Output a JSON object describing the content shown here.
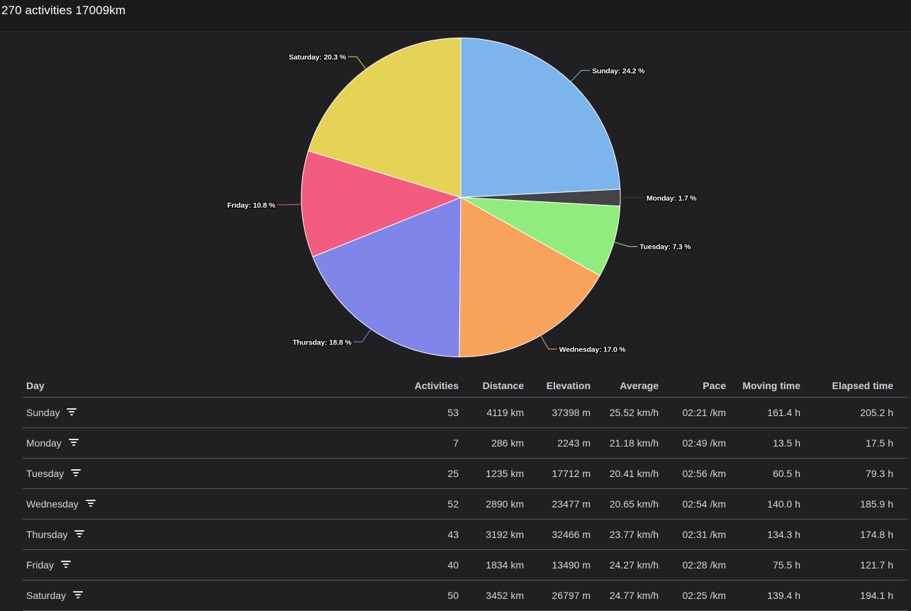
{
  "header": {
    "title": "270 activities 17009km"
  },
  "chart_data": {
    "type": "pie",
    "slices": [
      {
        "label": "Sunday",
        "value": 24.2,
        "display": "Sunday: 24.2 %",
        "color": "#7cb5ec"
      },
      {
        "label": "Monday",
        "value": 1.7,
        "display": "Monday: 1.7 %",
        "color": "#434348"
      },
      {
        "label": "Tuesday",
        "value": 7.3,
        "display": "Tuesday: 7.3 %",
        "color": "#90ed7d"
      },
      {
        "label": "Wednesday",
        "value": 17.0,
        "display": "Wednesday: 17.0 %",
        "color": "#f7a35c"
      },
      {
        "label": "Thursday",
        "value": 18.8,
        "display": "Thursday: 18.8 %",
        "color": "#8085e9"
      },
      {
        "label": "Friday",
        "value": 10.8,
        "display": "Friday: 10.8 %",
        "color": "#f15c80"
      },
      {
        "label": "Saturday",
        "value": 20.3,
        "display": "Saturday: 20.3 %",
        "color": "#e4d354"
      }
    ]
  },
  "table": {
    "columns": [
      "Day",
      "Activities",
      "Distance",
      "Elevation",
      "Average",
      "Pace",
      "Moving time",
      "Elapsed time"
    ],
    "rows": [
      [
        "Sunday",
        "53",
        "4119 km",
        "37398 m",
        "25.52 km/h",
        "02:21 /km",
        "161.4 h",
        "205.2 h"
      ],
      [
        "Monday",
        "7",
        "286 km",
        "2243 m",
        "21.18 km/h",
        "02:49 /km",
        "13.5 h",
        "17.5 h"
      ],
      [
        "Tuesday",
        "25",
        "1235 km",
        "17712 m",
        "20.41 km/h",
        "02:56 /km",
        "60.5 h",
        "79.3 h"
      ],
      [
        "Wednesday",
        "52",
        "2890 km",
        "23477 m",
        "20.65 km/h",
        "02:54 /km",
        "140.0 h",
        "185.9 h"
      ],
      [
        "Thursday",
        "43",
        "3192 km",
        "32466 m",
        "23.77 km/h",
        "02:31 /km",
        "134.3 h",
        "174.8 h"
      ],
      [
        "Friday",
        "40",
        "1834 km",
        "13490 m",
        "24.27 km/h",
        "02:28 /km",
        "75.5 h",
        "121.7 h"
      ],
      [
        "Saturday",
        "50",
        "3452 km",
        "26797 m",
        "24.77 km/h",
        "02:25 /km",
        "139.4 h",
        "194.1 h"
      ]
    ]
  }
}
